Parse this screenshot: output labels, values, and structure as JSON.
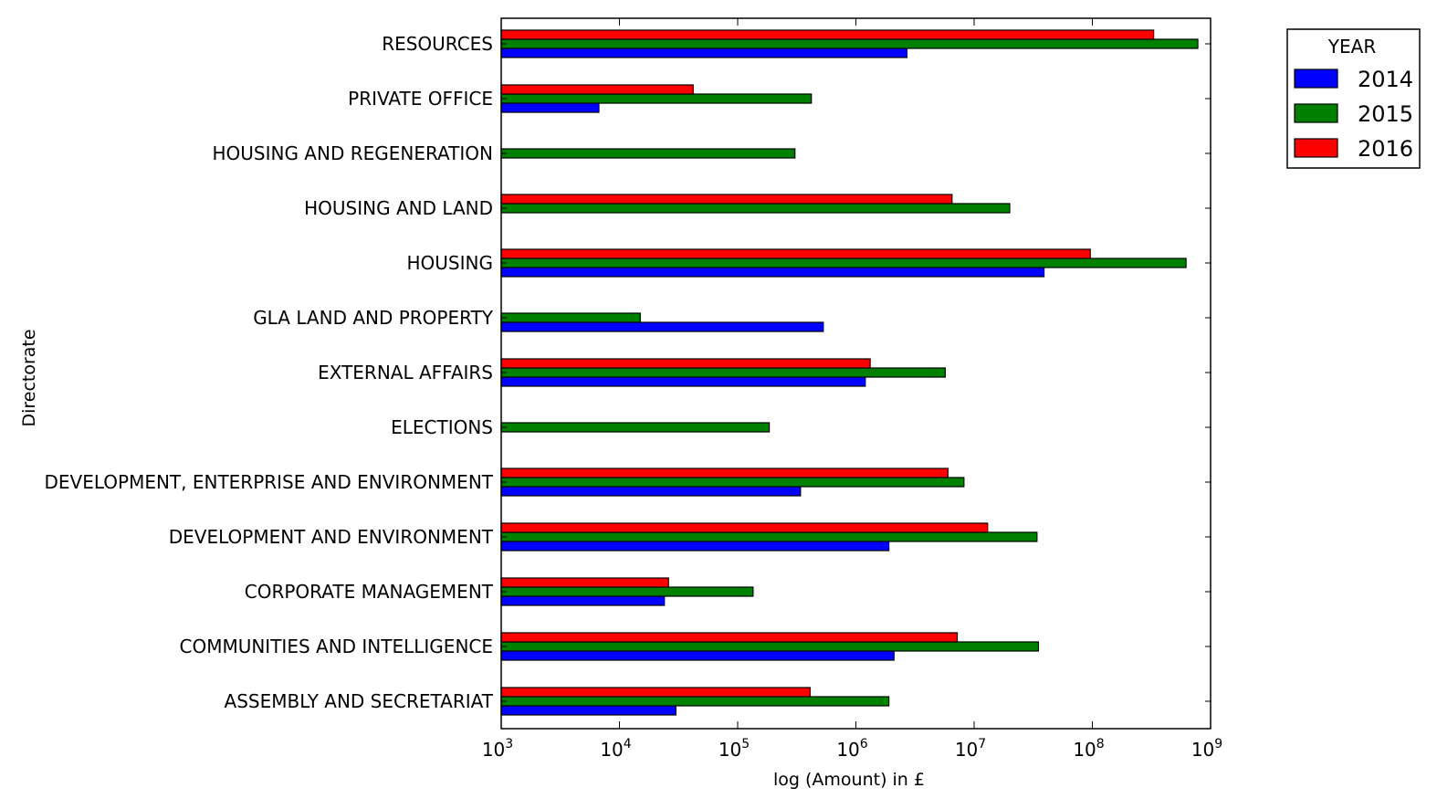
{
  "chart_data": {
    "type": "bar",
    "orientation": "horizontal",
    "xscale": "log",
    "xlim": [
      1000,
      1000000000
    ],
    "xlabel": "log (Amount) in £",
    "ylabel": "Directorate",
    "x_ticks": [
      {
        "value": 1000,
        "base": "10",
        "exp": "3"
      },
      {
        "value": 10000,
        "base": "10",
        "exp": "4"
      },
      {
        "value": 100000,
        "base": "10",
        "exp": "5"
      },
      {
        "value": 1000000,
        "base": "10",
        "exp": "6"
      },
      {
        "value": 10000000,
        "base": "10",
        "exp": "7"
      },
      {
        "value": 100000000,
        "base": "10",
        "exp": "8"
      },
      {
        "value": 1000000000,
        "base": "10",
        "exp": "9"
      }
    ],
    "categories": [
      "ASSEMBLY AND SECRETARIAT",
      "COMMUNITIES AND INTELLIGENCE",
      "CORPORATE MANAGEMENT",
      "DEVELOPMENT AND ENVIRONMENT",
      "DEVELOPMENT, ENTERPRISE AND ENVIRONMENT",
      "ELECTIONS",
      "EXTERNAL AFFAIRS",
      "GLA LAND AND PROPERTY",
      "HOUSING",
      "HOUSING AND LAND",
      "HOUSING AND REGENERATION",
      "PRIVATE OFFICE",
      "RESOURCES"
    ],
    "series": [
      {
        "name": "2014",
        "color": "#0000ff",
        "values": [
          30000,
          2100000,
          24000,
          1900000,
          340000,
          null,
          1200000,
          530000,
          39000000,
          null,
          null,
          6700,
          2700000
        ]
      },
      {
        "name": "2015",
        "color": "#008000",
        "values": [
          1900000,
          35000000,
          135000,
          34000000,
          8200000,
          185000,
          5700000,
          15000,
          620000000,
          20000000,
          305000,
          420000,
          780000000
        ]
      },
      {
        "name": "2016",
        "color": "#ff0000",
        "values": [
          410000,
          7200000,
          26000,
          13000000,
          6000000,
          null,
          1320000,
          null,
          96000000,
          6500000,
          null,
          42000,
          330000000
        ]
      }
    ],
    "legend": {
      "title": "YEAR",
      "placement": "outside-top-right"
    },
    "grid": false
  }
}
